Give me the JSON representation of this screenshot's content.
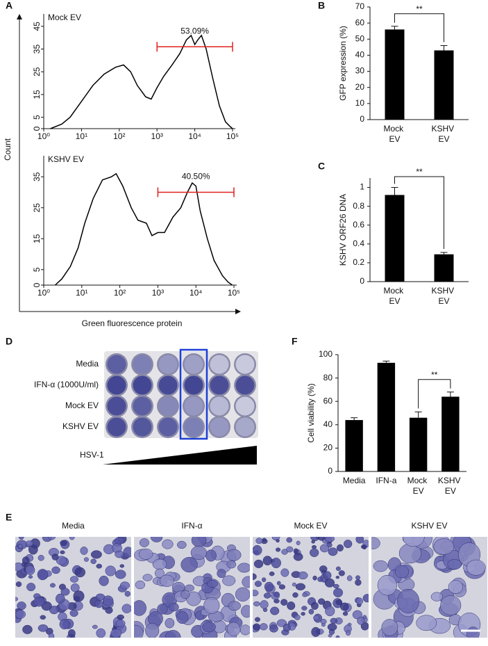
{
  "panel_labels": [
    "A",
    "B",
    "C",
    "D",
    "E",
    "F"
  ],
  "chart_data": [
    {
      "type": "line",
      "annotation_label": "Mock EV",
      "annotation_value": "53.09%",
      "y_label": "Count",
      "xscale": "log",
      "xlim": [
        1,
        100000
      ],
      "xticks": [
        {
          "value": 1,
          "label": "10⁰"
        },
        {
          "value": 10,
          "label": "10¹"
        },
        {
          "value": 100,
          "label": "10²"
        },
        {
          "value": 1000,
          "label": "10³"
        },
        {
          "value": 10000,
          "label": "10⁴"
        },
        {
          "value": 100000,
          "label": "10⁵"
        }
      ],
      "ylim": [
        0,
        48
      ],
      "yticks": [
        0,
        5,
        15,
        25,
        35,
        45
      ],
      "x": [
        1.5,
        3,
        5,
        10,
        20,
        40,
        80,
        130,
        200,
        300,
        500,
        700,
        1000,
        1500,
        2500,
        4000,
        6000,
        8000,
        10000,
        12000,
        15000,
        20000,
        30000,
        45000,
        65000,
        85000,
        100000
      ],
      "values": [
        0,
        2,
        5,
        12,
        19,
        24,
        27,
        28,
        25,
        19,
        14,
        13,
        18,
        23,
        28,
        33,
        39,
        41,
        37,
        39,
        41,
        35,
        22,
        10,
        3,
        1,
        0
      ],
      "color": "#000000",
      "gate": [
        1000,
        100000
      ],
      "gate_color": "#e0211f"
    },
    {
      "type": "line",
      "annotation_label": "KSHV EV",
      "annotation_value": "40.50%",
      "x_label": "Green fluorescence protein",
      "xscale": "log",
      "xlim": [
        1,
        100000
      ],
      "xticks": [
        {
          "value": 1,
          "label": "10⁰"
        },
        {
          "value": 10,
          "label": "10¹"
        },
        {
          "value": 100,
          "label": "10²"
        },
        {
          "value": 1000,
          "label": "10³"
        },
        {
          "value": 10000,
          "label": "10⁴"
        },
        {
          "value": 100000,
          "label": "10⁵"
        }
      ],
      "ylim": [
        0,
        40
      ],
      "yticks": [
        0,
        5,
        15,
        25,
        35
      ],
      "x": [
        2,
        3,
        5,
        8,
        12,
        20,
        35,
        60,
        80,
        120,
        200,
        300,
        500,
        700,
        1000,
        1500,
        2500,
        4000,
        6000,
        8000,
        10000,
        13000,
        20000,
        30000,
        50000,
        70000,
        90000
      ],
      "values": [
        0,
        2,
        6,
        12,
        20,
        28,
        34,
        35,
        36,
        32,
        25,
        21,
        20,
        16,
        17,
        17,
        22,
        25,
        30,
        33,
        32,
        24,
        15,
        8,
        3,
        1,
        0
      ],
      "color": "#000000",
      "gate": [
        1000,
        100000
      ],
      "gate_color": "#e0211f"
    },
    {
      "type": "bar",
      "y_label": "GFP expression (%)",
      "categories": [
        "Mock EV",
        "KSHV EV"
      ],
      "values": [
        56,
        43
      ],
      "errors": [
        2,
        3
      ],
      "color": "#000000",
      "ylim": [
        0,
        70
      ],
      "yticks": [
        0,
        10,
        20,
        30,
        40,
        50,
        60,
        70
      ],
      "significance": "**"
    },
    {
      "type": "bar",
      "y_label": "KSHV ORF26 DNA",
      "categories": [
        "Mock EV",
        "KSHV EV"
      ],
      "values": [
        0.92,
        0.29
      ],
      "errors": [
        0.08,
        0.02
      ],
      "color": "#000000",
      "ylim": [
        0,
        1.1
      ],
      "yticks": [
        0,
        0.2,
        0.4,
        0.6,
        0.8,
        1
      ],
      "significance": "**"
    },
    {
      "type": "bar",
      "y_label": "Cell viability (%)",
      "categories": [
        "Media",
        "IFN-a",
        "Mock EV",
        "KSHV EV"
      ],
      "values": [
        44,
        93,
        46,
        64
      ],
      "errors": [
        2,
        1.5,
        5,
        4
      ],
      "color": "#000000",
      "ylim": [
        0,
        100
      ],
      "yticks": [
        0,
        20,
        40,
        60,
        80,
        100
      ],
      "significance": "**"
    }
  ],
  "plate": {
    "rows": [
      "Media",
      "IFN-α (1000U/ml)",
      "Mock EV",
      "KSHV EV"
    ],
    "gradient_label": "HSV-1"
  },
  "micrographs": {
    "labels": [
      "Media",
      "IFN-α",
      "Mock EV",
      "KSHV EV"
    ]
  }
}
